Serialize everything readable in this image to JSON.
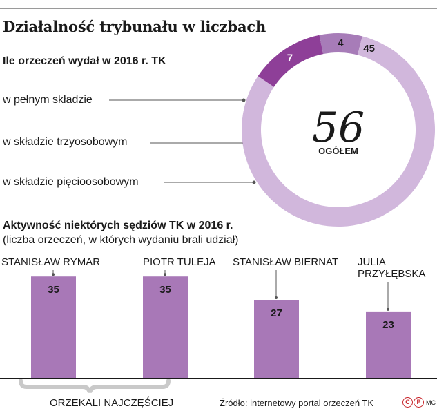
{
  "title": "Działalność trybunału w liczbach",
  "donut": {
    "subtitle": "Ile orzeczeń wydał w 2016 r. TK",
    "total": "56",
    "total_label": "OGÓŁEM",
    "colors": {
      "pelny": "#8e3f98",
      "trzy": "#a77cb8",
      "piec": "#d1b7dc"
    }
  },
  "bars": {
    "title": "Aktywność niektórych sędziów TK w 2016 r.",
    "note": "(liczba orzeczeń, w których wydaniu brali udział)",
    "bracket_label": "ORZEKALI NAJCZĘŚCIEJ",
    "color": "#a878b7"
  },
  "source": "Źródło: internetowy portal orzeczeń TK",
  "badges": {
    "c": "C",
    "p": "P",
    "mc": "MC"
  },
  "chart_data": [
    {
      "type": "pie",
      "title": "Ile orzeczeń wydał w 2016 r. TK",
      "categories": [
        "w pełnym składzie",
        "w składzie trzyosobowym",
        "w składzie pięcioosobowym"
      ],
      "values": [
        7,
        4,
        45
      ],
      "total": 56
    },
    {
      "type": "bar",
      "title": "Aktywność niektórych sędziów TK w 2016 r.",
      "subtitle": "(liczba orzeczeń, w których wydaniu brali udział)",
      "categories": [
        "STANISŁAW RYMAR",
        "PIOTR TULEJA",
        "STANISŁAW BIERNAT",
        "JULIA PRZYŁĘBSKA"
      ],
      "values": [
        35,
        35,
        27,
        23
      ],
      "ylim": [
        0,
        45
      ]
    }
  ]
}
